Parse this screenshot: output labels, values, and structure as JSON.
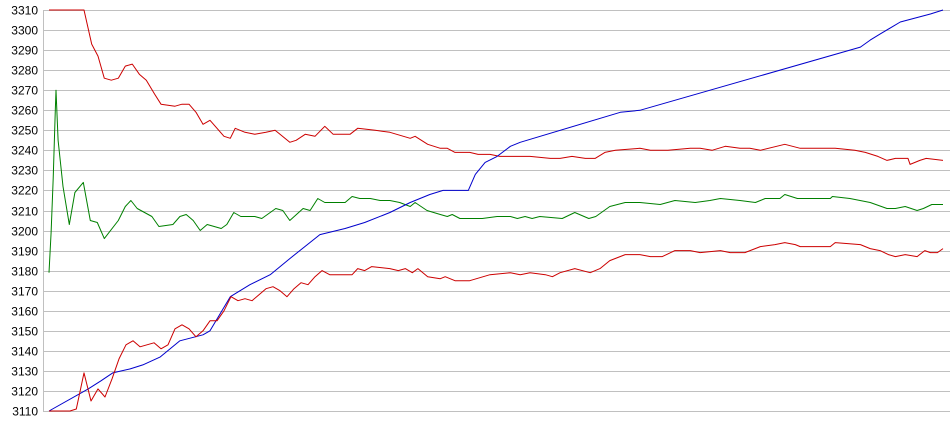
{
  "chart_data": {
    "type": "line",
    "title": "",
    "xlabel": "",
    "ylabel": "",
    "ylim": [
      3110,
      3310
    ],
    "xlim": [
      0,
      127.7
    ],
    "yticks": [
      "3310",
      "3300",
      "3290",
      "3280",
      "3270",
      "3260",
      "3250",
      "3240",
      "3230",
      "3220",
      "3210",
      "3200",
      "3190",
      "3180",
      "3170",
      "3160",
      "3150",
      "3140",
      "3130",
      "3120",
      "3110"
    ],
    "grid": "horizontal",
    "legend": "none",
    "series": [
      {
        "color": "#cc0000",
        "points": [
          [
            0,
            3310
          ],
          [
            5,
            3310
          ],
          [
            6.1,
            3293
          ],
          [
            7,
            3287
          ],
          [
            7.9,
            3276
          ],
          [
            8.9,
            3275
          ],
          [
            9.9,
            3276
          ],
          [
            10.9,
            3282
          ],
          [
            11.9,
            3283
          ],
          [
            12.9,
            3278
          ],
          [
            13.9,
            3275
          ],
          [
            15.1,
            3268
          ],
          [
            16,
            3263
          ],
          [
            18,
            3262
          ],
          [
            19,
            3263
          ],
          [
            20,
            3263
          ],
          [
            21,
            3259
          ],
          [
            22,
            3253
          ],
          [
            23,
            3255
          ],
          [
            25,
            3247
          ],
          [
            25.9,
            3246
          ],
          [
            26.6,
            3251
          ],
          [
            28,
            3249
          ],
          [
            29.4,
            3248
          ],
          [
            31,
            3249
          ],
          [
            32.3,
            3250
          ],
          [
            34.4,
            3244
          ],
          [
            35.3,
            3245
          ],
          [
            36.6,
            3248
          ],
          [
            38,
            3247
          ],
          [
            39.4,
            3252
          ],
          [
            40.6,
            3248
          ],
          [
            43,
            3248
          ],
          [
            44.1,
            3251
          ],
          [
            46.6,
            3250
          ],
          [
            48.7,
            3249
          ],
          [
            51.6,
            3246
          ],
          [
            52.3,
            3247
          ],
          [
            54.1,
            3243
          ],
          [
            55.9,
            3241
          ],
          [
            56.9,
            3241
          ],
          [
            58,
            3239
          ],
          [
            60.1,
            3239
          ],
          [
            61.3,
            3238
          ],
          [
            63,
            3238
          ],
          [
            64.4,
            3237
          ],
          [
            67.3,
            3237
          ],
          [
            68.7,
            3237
          ],
          [
            71.6,
            3236
          ],
          [
            73,
            3236
          ],
          [
            74.7,
            3237
          ],
          [
            76.6,
            3236
          ],
          [
            78,
            3236
          ],
          [
            79.4,
            3239
          ],
          [
            80.9,
            3240
          ],
          [
            84.4,
            3241
          ],
          [
            85.9,
            3240
          ],
          [
            88.4,
            3240
          ],
          [
            91.6,
            3241
          ],
          [
            93,
            3241
          ],
          [
            94.7,
            3240
          ],
          [
            96.6,
            3242
          ],
          [
            98.7,
            3241
          ],
          [
            100.1,
            3241
          ],
          [
            101.6,
            3240
          ],
          [
            105.1,
            3243
          ],
          [
            107.3,
            3241
          ],
          [
            112.3,
            3241
          ],
          [
            115.1,
            3240
          ],
          [
            116.6,
            3239
          ],
          [
            118.4,
            3237
          ],
          [
            119.7,
            3235
          ],
          [
            120.9,
            3236
          ],
          [
            122.7,
            3236
          ],
          [
            123,
            3233
          ],
          [
            124.4,
            3235
          ],
          [
            125.3,
            3236
          ],
          [
            127.7,
            3235
          ]
        ]
      },
      {
        "color": "#008000",
        "points": [
          [
            0,
            3179
          ],
          [
            0.3,
            3199
          ],
          [
            0.6,
            3226
          ],
          [
            0.9,
            3260
          ],
          [
            1,
            3270
          ],
          [
            1.3,
            3245
          ],
          [
            2,
            3222
          ],
          [
            2.9,
            3203
          ],
          [
            3.7,
            3219
          ],
          [
            4.9,
            3224
          ],
          [
            5.9,
            3205
          ],
          [
            6.9,
            3204
          ],
          [
            7.9,
            3196
          ],
          [
            9.9,
            3205
          ],
          [
            10.9,
            3212
          ],
          [
            11.7,
            3215
          ],
          [
            12.6,
            3211
          ],
          [
            14.7,
            3207
          ],
          [
            15.7,
            3202
          ],
          [
            17.7,
            3203
          ],
          [
            18.7,
            3207
          ],
          [
            19.6,
            3208
          ],
          [
            20.6,
            3205
          ],
          [
            21.6,
            3200
          ],
          [
            22.6,
            3203
          ],
          [
            24.6,
            3201
          ],
          [
            25.4,
            3203
          ],
          [
            26.4,
            3209
          ],
          [
            27.4,
            3207
          ],
          [
            29.4,
            3207
          ],
          [
            30.4,
            3206
          ],
          [
            32.4,
            3211
          ],
          [
            33.4,
            3210
          ],
          [
            34.4,
            3205
          ],
          [
            36.3,
            3211
          ],
          [
            37.3,
            3210
          ],
          [
            38.4,
            3216
          ],
          [
            39.4,
            3214
          ],
          [
            42.3,
            3214
          ],
          [
            43.3,
            3217
          ],
          [
            44.4,
            3216
          ],
          [
            45.9,
            3216
          ],
          [
            47.3,
            3215
          ],
          [
            48.7,
            3215
          ],
          [
            50.1,
            3214
          ],
          [
            51.6,
            3212
          ],
          [
            52.3,
            3214
          ],
          [
            54,
            3210
          ],
          [
            55.9,
            3208
          ],
          [
            56.9,
            3207
          ],
          [
            57.6,
            3208
          ],
          [
            58.7,
            3206
          ],
          [
            61.9,
            3206
          ],
          [
            64,
            3207
          ],
          [
            65.9,
            3207
          ],
          [
            66.9,
            3206
          ],
          [
            68,
            3207
          ],
          [
            69,
            3206
          ],
          [
            70.1,
            3207
          ],
          [
            73.3,
            3206
          ],
          [
            75.1,
            3209
          ],
          [
            77.1,
            3206
          ],
          [
            78.1,
            3207
          ],
          [
            80.1,
            3212
          ],
          [
            82.3,
            3214
          ],
          [
            84.4,
            3214
          ],
          [
            87.3,
            3213
          ],
          [
            89.4,
            3215
          ],
          [
            92.3,
            3214
          ],
          [
            94.4,
            3215
          ],
          [
            95.9,
            3216
          ],
          [
            98.7,
            3215
          ],
          [
            100.9,
            3214
          ],
          [
            102.3,
            3216
          ],
          [
            104.4,
            3216
          ],
          [
            105.1,
            3218
          ],
          [
            106.9,
            3216
          ],
          [
            111.6,
            3216
          ],
          [
            111.9,
            3217
          ],
          [
            114.4,
            3216
          ],
          [
            117.3,
            3214
          ],
          [
            119.7,
            3211
          ],
          [
            120.9,
            3211
          ],
          [
            122.3,
            3212
          ],
          [
            124,
            3210
          ],
          [
            124.9,
            3211
          ],
          [
            126.1,
            3213
          ],
          [
            127.7,
            3213
          ]
        ]
      },
      {
        "color": "#0000cc",
        "points": [
          [
            0,
            3110
          ],
          [
            5.6,
            3121
          ],
          [
            7.4,
            3125
          ],
          [
            9.1,
            3129
          ],
          [
            11.6,
            3131
          ],
          [
            13.4,
            3133
          ],
          [
            15.9,
            3137
          ],
          [
            18.7,
            3145
          ],
          [
            22,
            3148
          ],
          [
            23,
            3150
          ],
          [
            25.9,
            3167
          ],
          [
            28.7,
            3173
          ],
          [
            31.6,
            3178
          ],
          [
            34.4,
            3186
          ],
          [
            38.7,
            3198
          ],
          [
            42.3,
            3201
          ],
          [
            45.1,
            3204
          ],
          [
            48.7,
            3209
          ],
          [
            51.6,
            3214
          ],
          [
            54.4,
            3218
          ],
          [
            56.3,
            3220
          ],
          [
            59.9,
            3220
          ],
          [
            60.9,
            3228
          ],
          [
            62.3,
            3234
          ],
          [
            64,
            3237
          ],
          [
            65.9,
            3242
          ],
          [
            67.3,
            3244
          ],
          [
            81.6,
            3259
          ],
          [
            84.4,
            3260
          ],
          [
            115.9,
            3291.5
          ],
          [
            117.3,
            3295
          ],
          [
            118.7,
            3298
          ],
          [
            121.6,
            3304
          ],
          [
            125.9,
            3308
          ],
          [
            127.7,
            3310
          ]
        ]
      },
      {
        "color": "#cc0000",
        "points": [
          [
            0,
            3110
          ],
          [
            3,
            3110
          ],
          [
            3.9,
            3111
          ],
          [
            5,
            3129
          ],
          [
            6,
            3115
          ],
          [
            7,
            3121
          ],
          [
            8,
            3117
          ],
          [
            9,
            3126
          ],
          [
            10,
            3136
          ],
          [
            11,
            3143
          ],
          [
            12,
            3145
          ],
          [
            13,
            3142
          ],
          [
            14,
            3143
          ],
          [
            15,
            3144
          ],
          [
            16,
            3141
          ],
          [
            17,
            3143
          ],
          [
            18,
            3151
          ],
          [
            19,
            3153
          ],
          [
            20,
            3151
          ],
          [
            21,
            3147
          ],
          [
            22,
            3150
          ],
          [
            23,
            3155
          ],
          [
            24,
            3155
          ],
          [
            25,
            3160
          ],
          [
            26,
            3167
          ],
          [
            27,
            3165
          ],
          [
            28,
            3166
          ],
          [
            29,
            3165
          ],
          [
            30,
            3168
          ],
          [
            31,
            3171
          ],
          [
            32,
            3172
          ],
          [
            33,
            3170
          ],
          [
            34,
            3167
          ],
          [
            35,
            3171
          ],
          [
            36,
            3174
          ],
          [
            37,
            3173
          ],
          [
            38,
            3177
          ],
          [
            39,
            3180
          ],
          [
            40.1,
            3178
          ],
          [
            43.3,
            3178
          ],
          [
            44.1,
            3181
          ],
          [
            45.1,
            3180
          ],
          [
            46.1,
            3182
          ],
          [
            48.7,
            3181
          ],
          [
            49.9,
            3180
          ],
          [
            50.9,
            3181
          ],
          [
            51.9,
            3179
          ],
          [
            52.7,
            3181
          ],
          [
            54.1,
            3177
          ],
          [
            55.9,
            3176
          ],
          [
            56.6,
            3177
          ],
          [
            58,
            3175
          ],
          [
            60.1,
            3175
          ],
          [
            63,
            3178
          ],
          [
            65.9,
            3179
          ],
          [
            67.3,
            3178
          ],
          [
            68.7,
            3179
          ],
          [
            70.9,
            3178
          ],
          [
            71.9,
            3177
          ],
          [
            73,
            3179
          ],
          [
            75.1,
            3181
          ],
          [
            77.3,
            3179
          ],
          [
            78.7,
            3181
          ],
          [
            80.1,
            3185
          ],
          [
            82.3,
            3188
          ],
          [
            84.4,
            3188
          ],
          [
            85.9,
            3187
          ],
          [
            87.6,
            3187
          ],
          [
            89.4,
            3190
          ],
          [
            91.6,
            3190
          ],
          [
            93,
            3189
          ],
          [
            95.9,
            3190
          ],
          [
            97.3,
            3189
          ],
          [
            99.4,
            3189
          ],
          [
            101.6,
            3192
          ],
          [
            103.7,
            3193
          ],
          [
            105.1,
            3194
          ],
          [
            106.6,
            3193
          ],
          [
            107.3,
            3192
          ],
          [
            111.6,
            3192
          ],
          [
            112.3,
            3194
          ],
          [
            115.9,
            3193
          ],
          [
            117.3,
            3191
          ],
          [
            118.7,
            3190
          ],
          [
            119.9,
            3188
          ],
          [
            120.9,
            3187
          ],
          [
            122.3,
            3188
          ],
          [
            124,
            3187
          ],
          [
            125.1,
            3190
          ],
          [
            125.9,
            3189
          ],
          [
            126.9,
            3189
          ],
          [
            127.7,
            3191
          ]
        ]
      }
    ]
  }
}
